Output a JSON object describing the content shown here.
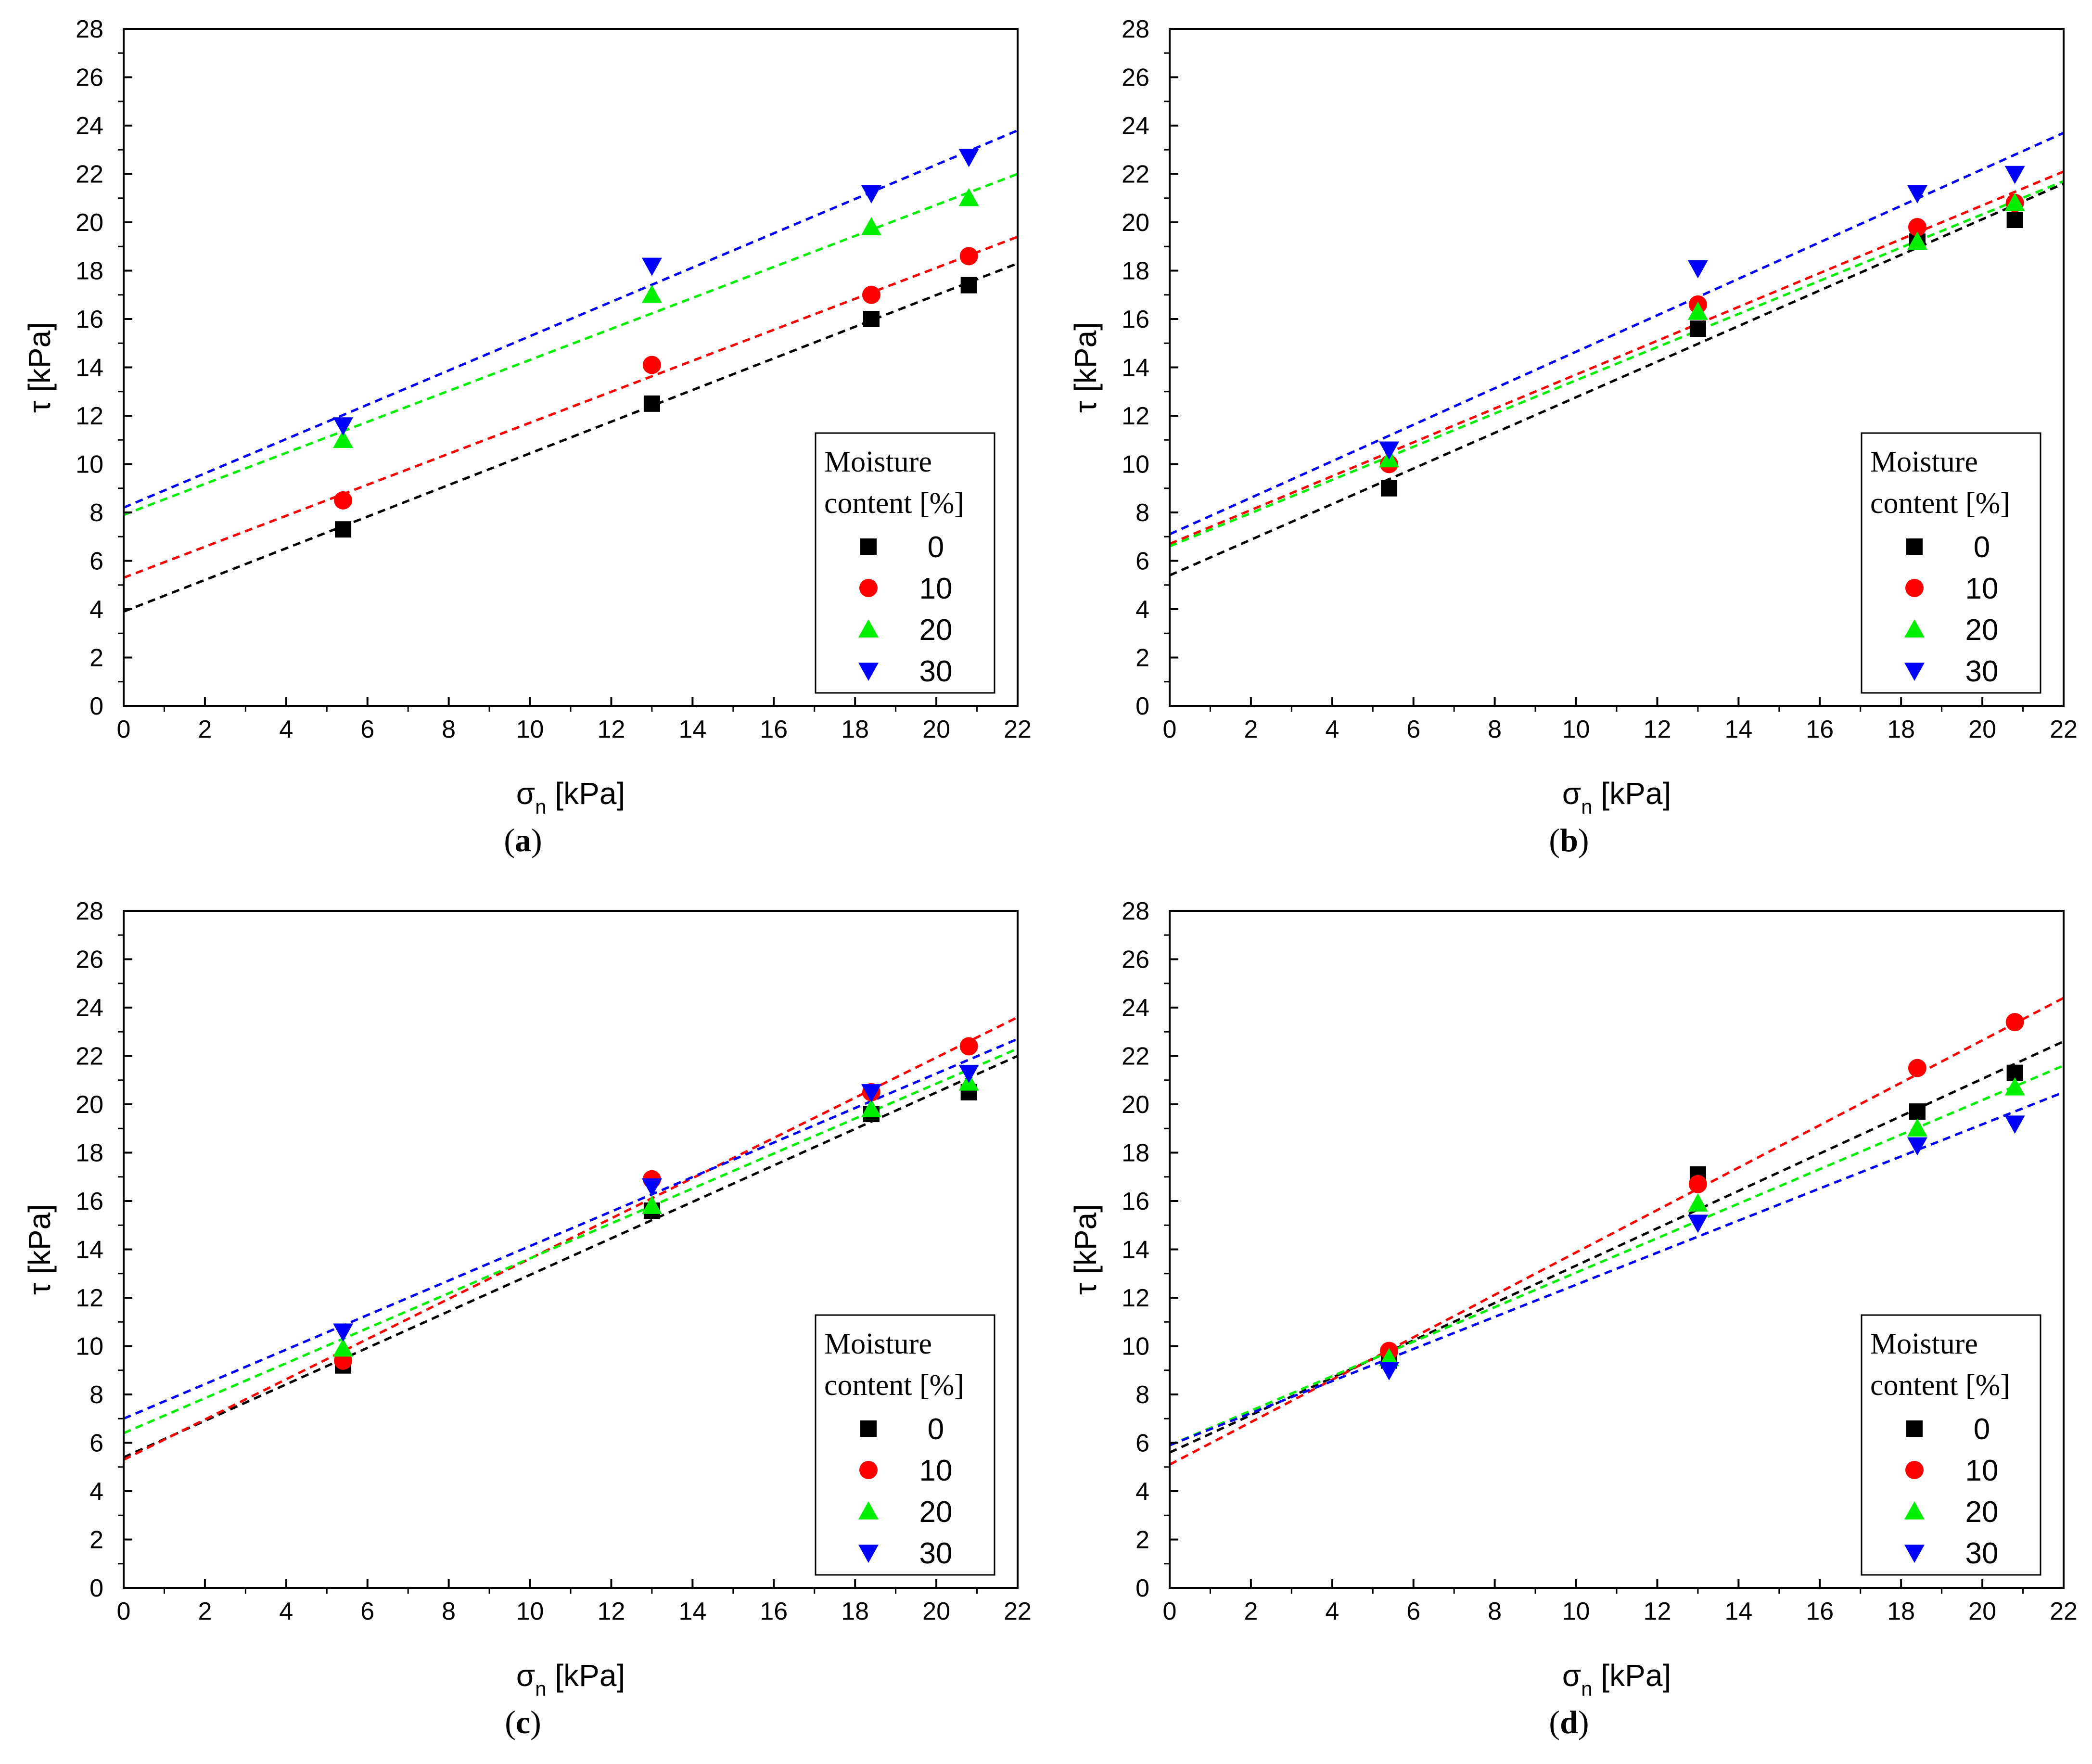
{
  "colors": {
    "s0": "#000000",
    "s10": "#ff0000",
    "s20": "#00ee00",
    "s30": "#0000ff"
  },
  "legend": {
    "title_line1": "Moisture",
    "title_line2": "content [%]"
  },
  "chart_data": [
    {
      "type": "scatter",
      "caption_label": "a",
      "xlabel_symbol": "σ",
      "xlabel_sub": "n",
      "xlabel_unit": "[kPa]",
      "ylabel": "τ [kPa]",
      "xlim": [
        0,
        22
      ],
      "ylim": [
        0,
        28
      ],
      "xticks": [
        "0",
        "2",
        "4",
        "6",
        "8",
        "10",
        "12",
        "14",
        "16",
        "18",
        "20",
        "22"
      ],
      "yticks": [
        "0",
        "2",
        "4",
        "6",
        "8",
        "10",
        "12",
        "14",
        "16",
        "18",
        "20",
        "22",
        "24",
        "26",
        "28"
      ],
      "grid": false,
      "legend_position": "bottom-right",
      "series": [
        {
          "name": "0",
          "color": "#000000",
          "marker": "square",
          "x": [
            5.4,
            13.0,
            18.4,
            20.8
          ],
          "y": [
            7.3,
            12.5,
            16.0,
            17.4
          ],
          "fit": [
            3.9,
            18.3
          ]
        },
        {
          "name": "10",
          "color": "#ff0000",
          "marker": "circle",
          "x": [
            5.4,
            13.0,
            18.4,
            20.8
          ],
          "y": [
            8.5,
            14.1,
            17.0,
            18.6
          ],
          "fit": [
            5.3,
            19.4
          ]
        },
        {
          "name": "20",
          "color": "#00ee00",
          "marker": "triangle-up",
          "x": [
            5.4,
            13.0,
            18.4,
            20.8
          ],
          "y": [
            11.0,
            17.0,
            19.8,
            21.0
          ],
          "fit": [
            7.9,
            22.0
          ]
        },
        {
          "name": "30",
          "color": "#0000ff",
          "marker": "triangle-down",
          "x": [
            5.4,
            13.0,
            18.4,
            20.8
          ],
          "y": [
            11.6,
            18.2,
            21.2,
            22.7
          ],
          "fit": [
            8.2,
            23.8
          ]
        }
      ]
    },
    {
      "type": "scatter",
      "caption_label": "b",
      "xlabel_symbol": "σ",
      "xlabel_sub": "n",
      "xlabel_unit": "[kPa]",
      "ylabel": "τ [kPa]",
      "xlim": [
        0,
        22
      ],
      "ylim": [
        0,
        28
      ],
      "xticks": [
        "0",
        "2",
        "4",
        "6",
        "8",
        "10",
        "12",
        "14",
        "16",
        "18",
        "20",
        "22"
      ],
      "yticks": [
        "0",
        "2",
        "4",
        "6",
        "8",
        "10",
        "12",
        "14",
        "16",
        "18",
        "20",
        "22",
        "24",
        "26",
        "28"
      ],
      "grid": false,
      "legend_position": "bottom-right",
      "series": [
        {
          "name": "0",
          "color": "#000000",
          "marker": "square",
          "x": [
            5.4,
            13.0,
            18.4,
            20.8
          ],
          "y": [
            9.0,
            15.6,
            19.2,
            20.1
          ],
          "fit": [
            5.4,
            21.6
          ]
        },
        {
          "name": "10",
          "color": "#ff0000",
          "marker": "circle",
          "x": [
            5.4,
            13.0,
            18.4,
            20.8
          ],
          "y": [
            10.0,
            16.6,
            19.8,
            20.8
          ],
          "fit": [
            6.7,
            22.1
          ]
        },
        {
          "name": "20",
          "color": "#00ee00",
          "marker": "triangle-up",
          "x": [
            5.4,
            13.0,
            18.4,
            20.8
          ],
          "y": [
            10.2,
            16.3,
            19.2,
            20.8
          ],
          "fit": [
            6.6,
            21.7
          ]
        },
        {
          "name": "30",
          "color": "#0000ff",
          "marker": "triangle-down",
          "x": [
            5.4,
            13.0,
            18.4,
            20.8
          ],
          "y": [
            10.6,
            18.1,
            21.2,
            22.0
          ],
          "fit": [
            7.1,
            23.7
          ]
        }
      ]
    },
    {
      "type": "scatter",
      "caption_label": "c",
      "xlabel_symbol": "σ",
      "xlabel_sub": "n",
      "xlabel_unit": "[kPa]",
      "ylabel": "τ [kPa]",
      "xlim": [
        0,
        22
      ],
      "ylim": [
        0,
        28
      ],
      "xticks": [
        "0",
        "2",
        "4",
        "6",
        "8",
        "10",
        "12",
        "14",
        "16",
        "18",
        "20",
        "22"
      ],
      "yticks": [
        "0",
        "2",
        "4",
        "6",
        "8",
        "10",
        "12",
        "14",
        "16",
        "18",
        "20",
        "22",
        "24",
        "26",
        "28"
      ],
      "grid": false,
      "legend_position": "bottom-right",
      "series": [
        {
          "name": "0",
          "color": "#000000",
          "marker": "square",
          "x": [
            5.4,
            13.0,
            18.4,
            20.8
          ],
          "y": [
            9.2,
            15.6,
            19.6,
            20.5
          ],
          "fit": [
            5.4,
            22.0
          ]
        },
        {
          "name": "10",
          "color": "#ff0000",
          "marker": "circle",
          "x": [
            5.4,
            13.0,
            18.4,
            20.8
          ],
          "y": [
            9.4,
            16.9,
            20.5,
            22.4
          ],
          "fit": [
            5.3,
            23.6
          ]
        },
        {
          "name": "20",
          "color": "#00ee00",
          "marker": "triangle-up",
          "x": [
            5.4,
            13.0,
            18.4,
            20.8
          ],
          "y": [
            9.9,
            15.8,
            19.8,
            20.9
          ],
          "fit": [
            6.4,
            22.3
          ]
        },
        {
          "name": "30",
          "color": "#0000ff",
          "marker": "triangle-down",
          "x": [
            5.4,
            13.0,
            18.4,
            20.8
          ],
          "y": [
            10.6,
            16.6,
            20.5,
            21.3
          ],
          "fit": [
            7.0,
            22.7
          ]
        }
      ]
    },
    {
      "type": "scatter",
      "caption_label": "d",
      "xlabel_symbol": "σ",
      "xlabel_sub": "n",
      "xlabel_unit": "[kPa]",
      "ylabel": "τ [kPa]",
      "xlim": [
        0,
        22
      ],
      "ylim": [
        0,
        28
      ],
      "xticks": [
        "0",
        "2",
        "4",
        "6",
        "8",
        "10",
        "12",
        "14",
        "16",
        "18",
        "20",
        "22"
      ],
      "yticks": [
        "0",
        "2",
        "4",
        "6",
        "8",
        "10",
        "12",
        "14",
        "16",
        "18",
        "20",
        "22",
        "24",
        "26",
        "28"
      ],
      "grid": false,
      "legend_position": "bottom-right",
      "series": [
        {
          "name": "0",
          "color": "#000000",
          "marker": "square",
          "x": [
            5.4,
            13.0,
            18.4,
            20.8
          ],
          "y": [
            9.4,
            17.1,
            19.7,
            21.3
          ],
          "fit": [
            5.6,
            22.6
          ]
        },
        {
          "name": "10",
          "color": "#ff0000",
          "marker": "circle",
          "x": [
            5.4,
            13.0,
            18.4,
            20.8
          ],
          "y": [
            9.8,
            16.7,
            21.5,
            23.4
          ],
          "fit": [
            5.1,
            24.4
          ]
        },
        {
          "name": "20",
          "color": "#00ee00",
          "marker": "triangle-up",
          "x": [
            5.4,
            13.0,
            18.4,
            20.8
          ],
          "y": [
            9.5,
            15.9,
            19.0,
            20.7
          ],
          "fit": [
            5.9,
            21.6
          ]
        },
        {
          "name": "30",
          "color": "#0000ff",
          "marker": "triangle-down",
          "x": [
            5.4,
            13.0,
            18.4,
            20.8
          ],
          "y": [
            9.0,
            15.1,
            18.3,
            19.2
          ],
          "fit": [
            5.9,
            20.5
          ]
        }
      ]
    }
  ]
}
